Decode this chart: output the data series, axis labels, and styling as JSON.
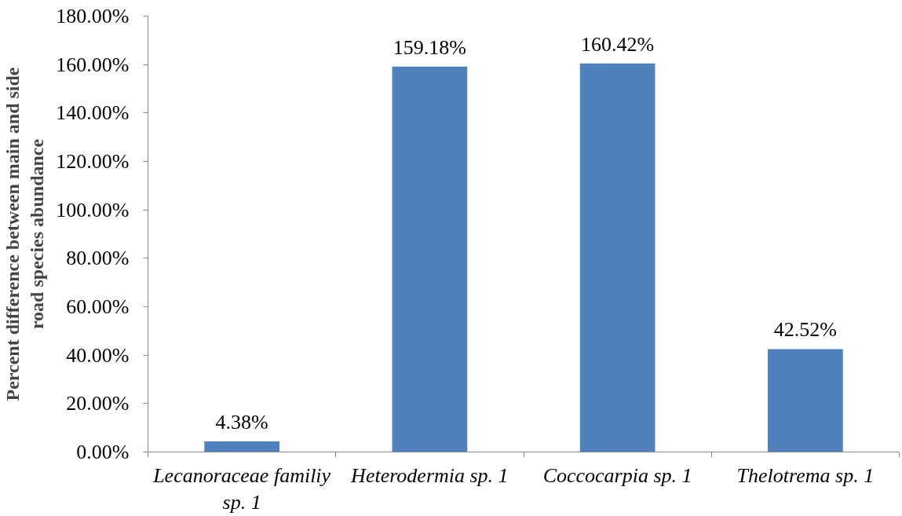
{
  "chart_data": {
    "type": "bar",
    "ylabel": "Percent difference between main and side road species abundance",
    "categories": [
      "Lecanoraceae familiy sp. 1",
      "Heterodermia sp. 1",
      "Coccocarpia sp. 1",
      "Thelotrema sp. 1"
    ],
    "values": [
      4.38,
      159.18,
      160.42,
      42.52
    ],
    "value_labels": [
      "4.38%",
      "159.18%",
      "160.42%",
      "42.52%"
    ],
    "color": "#4f81bd",
    "ylim": [
      0,
      180
    ],
    "yticks": [
      {
        "value": 0,
        "label": "0.00%"
      },
      {
        "value": 20,
        "label": "20.00%"
      },
      {
        "value": 40,
        "label": "40.00%"
      },
      {
        "value": 60,
        "label": "60.00%"
      },
      {
        "value": 80,
        "label": "80.00%"
      },
      {
        "value": 100,
        "label": "100.00%"
      },
      {
        "value": 120,
        "label": "120.00%"
      },
      {
        "value": 140,
        "label": "140.00%"
      },
      {
        "value": 160,
        "label": "160.00%"
      },
      {
        "value": 180,
        "label": "180.00%"
      }
    ]
  }
}
